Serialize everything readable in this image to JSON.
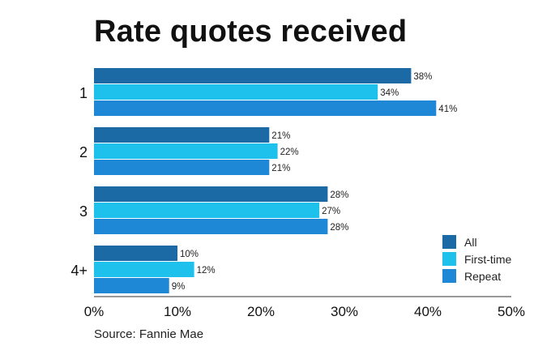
{
  "chart_data": {
    "type": "bar",
    "orientation": "horizontal",
    "title": "Rate quotes received",
    "source": "Source: Fannie Mae",
    "categories": [
      "1",
      "2",
      "3",
      "4+"
    ],
    "series": [
      {
        "name": "All",
        "color": "#1c6aa5",
        "values": [
          38,
          21,
          28,
          10
        ]
      },
      {
        "name": "First-time",
        "color": "#1ec0ec",
        "values": [
          34,
          22,
          27,
          12
        ]
      },
      {
        "name": "Repeat",
        "color": "#1e87d6",
        "values": [
          41,
          21,
          28,
          9
        ]
      }
    ],
    "value_suffix": "%",
    "xlim": [
      0,
      50
    ],
    "xticks": [
      "0%",
      "10%",
      "20%",
      "30%",
      "40%",
      "50%"
    ],
    "xlabel": "",
    "ylabel": "",
    "grid": false,
    "legend_position": "bottom-right"
  }
}
